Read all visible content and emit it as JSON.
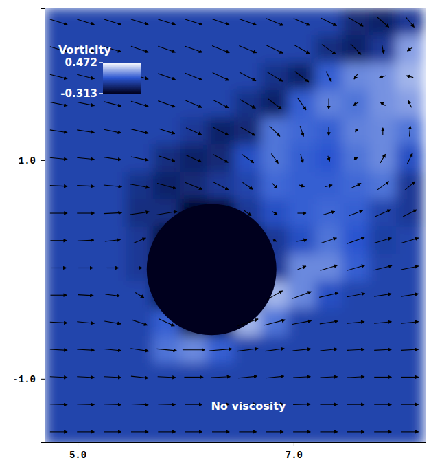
{
  "chart_data": {
    "type": "heatmap",
    "annotation": "No viscosity",
    "xlim": [
      4.695,
      8.22
    ],
    "ylim": [
      -1.58,
      2.39
    ],
    "xticks": [
      {
        "value": 5,
        "label": "5.0"
      },
      {
        "value": 7,
        "label": "7.0"
      }
    ],
    "yticks": [
      {
        "value": -1,
        "label": "-1.0"
      },
      {
        "value": 1,
        "label": "1.0"
      }
    ],
    "colorbar": {
      "title": "Vorticity",
      "range": [
        -0.313,
        0.472
      ],
      "ticks": [
        0.472,
        -0.313
      ],
      "colors": [
        "#00001e",
        "#2a55d0",
        "#ffffff"
      ]
    },
    "cylinder": {
      "x": 6.24,
      "y": 0.0,
      "radius": 0.6
    },
    "x": [
      4.825,
      5.075,
      5.325,
      5.575,
      5.825,
      6.075,
      6.325,
      6.575,
      6.825,
      7.075,
      7.325,
      7.575,
      7.825,
      8.075
    ],
    "y": [
      2.265,
      2.015,
      1.765,
      1.515,
      1.265,
      1.015,
      0.765,
      0.515,
      0.265,
      0.015,
      -0.235,
      -0.485,
      -0.735,
      -0.985,
      -1.235,
      -1.485
    ],
    "z": [
      [
        0,
        0,
        0,
        0,
        0,
        0,
        0,
        0,
        0,
        0,
        0,
        -0.12,
        -0.15,
        -0.05
      ],
      [
        0,
        0,
        0,
        0,
        0,
        0,
        0,
        0,
        0,
        0,
        -0.1,
        -0.15,
        -0.05,
        0.25
      ],
      [
        0,
        0,
        0,
        0,
        0,
        0,
        0,
        0,
        -0.08,
        -0.15,
        0.1,
        0.2,
        0.22,
        0.3
      ],
      [
        0,
        0,
        0,
        0,
        0,
        0,
        0,
        -0.08,
        -0.15,
        0.1,
        0.18,
        0.15,
        0.22,
        0.25
      ],
      [
        0,
        0,
        0,
        0,
        0,
        -0.05,
        -0.15,
        -0.12,
        0.15,
        0.12,
        0.1,
        0.18,
        0.2,
        0.15
      ],
      [
        0,
        0,
        0,
        0,
        -0.1,
        -0.15,
        -0.12,
        0.05,
        0.15,
        0.1,
        0.08,
        0.15,
        0.2,
        0.05
      ],
      [
        0,
        0,
        0,
        -0.08,
        -0.15,
        -0.12,
        -0.05,
        0,
        0.12,
        0.1,
        0.1,
        0.12,
        0.15,
        -0.05
      ],
      [
        0,
        0,
        0,
        -0.1,
        -0.1,
        -0.3,
        -0.3,
        -0.05,
        0.05,
        0.1,
        0.12,
        0.1,
        0,
        -0.05
      ],
      [
        0,
        0,
        0,
        -0.05,
        -0.3,
        -0.3,
        -0.3,
        -0.3,
        -0.05,
        0.05,
        0.15,
        0.08,
        -0.02,
        0
      ],
      [
        0,
        0,
        0,
        -0.05,
        -0.3,
        -0.3,
        -0.3,
        -0.3,
        -0.05,
        0.2,
        0.2,
        0.1,
        0,
        0
      ],
      [
        0,
        0,
        0,
        0,
        -0.3,
        -0.3,
        -0.3,
        -0.3,
        0.3,
        0.2,
        0.05,
        0,
        0,
        0
      ],
      [
        0,
        0,
        0,
        0,
        0.1,
        -0.3,
        -0.3,
        0.3,
        0.15,
        0,
        0,
        0,
        0,
        0
      ],
      [
        0,
        0,
        0,
        0,
        0.15,
        0.2,
        0.1,
        0,
        0,
        0,
        0,
        0,
        0,
        0
      ],
      [
        0,
        0,
        0,
        0,
        0,
        0,
        0,
        0,
        0,
        0,
        0,
        0,
        0,
        0
      ],
      [
        0,
        0,
        0,
        0,
        0,
        0,
        0,
        0,
        0,
        0,
        0,
        0,
        0,
        0
      ],
      [
        0,
        0,
        0,
        0,
        0,
        0,
        0,
        0,
        0,
        0,
        0,
        0,
        0,
        0
      ]
    ],
    "vectors": {
      "u": [
        [
          1.0,
          1.0,
          1.0,
          1.0,
          1.0,
          1.0,
          1.0,
          1.0,
          1.0,
          0.95,
          0.9,
          0.85,
          0.7,
          0.5
        ],
        [
          1.0,
          1.0,
          1.0,
          1.0,
          1.0,
          1.0,
          1.0,
          1.0,
          0.95,
          0.9,
          0.8,
          0.6,
          0.1,
          -0.3
        ],
        [
          1.0,
          1.0,
          1.0,
          1.0,
          1.0,
          1.0,
          0.95,
          0.95,
          0.9,
          0.8,
          0.3,
          -0.2,
          -0.4,
          -0.4
        ],
        [
          1.0,
          1.0,
          1.0,
          1.0,
          1.0,
          0.95,
          0.9,
          0.9,
          0.8,
          0.5,
          0.0,
          -0.3,
          -0.3,
          -0.2
        ],
        [
          1.0,
          1.0,
          1.0,
          1.0,
          0.95,
          0.9,
          0.9,
          0.85,
          0.6,
          0.2,
          0.0,
          -0.05,
          0.0,
          0.05
        ],
        [
          1.0,
          1.0,
          1.0,
          1.0,
          0.95,
          0.9,
          0.85,
          0.7,
          0.4,
          0.15,
          0.1,
          0.2,
          0.3,
          0.3
        ],
        [
          1.0,
          1.0,
          1.05,
          1.1,
          1.1,
          1.0,
          0.9,
          0.6,
          0.3,
          0.3,
          0.4,
          0.6,
          0.7,
          0.6
        ],
        [
          1.0,
          1.0,
          1.05,
          1.1,
          1.2,
          null,
          null,
          0.4,
          0.3,
          0.5,
          0.7,
          0.8,
          0.9,
          0.8
        ],
        [
          0.95,
          0.95,
          0.9,
          0.7,
          null,
          null,
          null,
          null,
          0.2,
          0.6,
          0.9,
          1.0,
          1.0,
          1.0
        ],
        [
          0.9,
          0.85,
          0.7,
          0.3,
          null,
          null,
          null,
          null,
          null,
          0.5,
          1.0,
          1.05,
          1.05,
          1.0
        ],
        [
          0.95,
          0.9,
          0.85,
          0.5,
          null,
          null,
          null,
          null,
          0.9,
          1.1,
          1.1,
          1.05,
          1.0,
          1.0
        ],
        [
          1.0,
          1.0,
          0.95,
          0.9,
          0.9,
          null,
          null,
          1.2,
          1.2,
          1.1,
          1.05,
          1.0,
          1.0,
          1.0
        ],
        [
          1.0,
          1.0,
          1.0,
          1.05,
          1.15,
          1.3,
          1.3,
          1.2,
          1.1,
          1.05,
          1.0,
          1.0,
          1.0,
          1.0
        ],
        [
          1.0,
          1.0,
          1.0,
          1.0,
          1.05,
          1.1,
          1.1,
          1.1,
          1.05,
          1.0,
          1.0,
          1.0,
          1.0,
          1.0
        ],
        [
          1.0,
          1.0,
          1.0,
          1.0,
          1.0,
          1.0,
          1.0,
          1.0,
          1.0,
          1.0,
          1.0,
          1.0,
          1.0,
          1.0
        ],
        [
          1.0,
          1.0,
          1.0,
          1.0,
          1.0,
          1.0,
          1.0,
          1.0,
          1.0,
          1.0,
          1.0,
          1.0,
          1.0,
          1.0
        ]
      ],
      "v": [
        [
          -0.3,
          -0.3,
          -0.3,
          -0.3,
          -0.3,
          -0.3,
          -0.35,
          -0.35,
          -0.4,
          -0.4,
          -0.45,
          -0.5,
          -0.6,
          -0.6
        ],
        [
          -0.3,
          -0.3,
          -0.3,
          -0.35,
          -0.35,
          -0.35,
          -0.4,
          -0.4,
          -0.45,
          -0.5,
          -0.55,
          -0.6,
          -0.5,
          -0.2
        ],
        [
          -0.25,
          -0.25,
          -0.3,
          -0.3,
          -0.35,
          -0.4,
          -0.45,
          -0.5,
          -0.55,
          -0.6,
          -0.6,
          -0.3,
          -0.1,
          0.1
        ],
        [
          -0.2,
          -0.2,
          -0.25,
          -0.3,
          -0.35,
          -0.4,
          -0.45,
          -0.5,
          -0.6,
          -0.7,
          -0.6,
          -0.2,
          0.2,
          0.4
        ],
        [
          -0.15,
          -0.15,
          -0.2,
          -0.25,
          -0.3,
          -0.4,
          -0.45,
          -0.5,
          -0.6,
          -0.6,
          -0.5,
          -0.1,
          0.4,
          0.6
        ],
        [
          -0.1,
          -0.1,
          -0.15,
          -0.2,
          -0.3,
          -0.4,
          -0.45,
          -0.5,
          -0.55,
          -0.5,
          -0.3,
          0.1,
          0.5,
          0.6
        ],
        [
          -0.05,
          -0.05,
          -0.1,
          -0.2,
          -0.3,
          -0.4,
          -0.45,
          -0.4,
          -0.3,
          -0.1,
          0.1,
          0.3,
          0.5,
          0.5
        ],
        [
          0.0,
          0.0,
          0.05,
          0.15,
          0.2,
          null,
          null,
          -0.3,
          -0.2,
          0.0,
          0.2,
          0.3,
          0.4,
          0.4
        ],
        [
          0.0,
          0.05,
          0.1,
          0.3,
          null,
          null,
          null,
          null,
          -0.1,
          0.1,
          0.3,
          0.35,
          0.3,
          0.3
        ],
        [
          0.0,
          0.0,
          0.0,
          0.0,
          null,
          null,
          null,
          null,
          null,
          0.2,
          0.3,
          0.3,
          0.25,
          0.2
        ],
        [
          0.0,
          -0.05,
          -0.1,
          -0.3,
          null,
          null,
          null,
          null,
          0.5,
          0.4,
          0.25,
          0.2,
          0.15,
          0.15
        ],
        [
          -0.05,
          -0.1,
          -0.15,
          -0.3,
          -0.4,
          null,
          null,
          0.4,
          0.3,
          0.2,
          0.15,
          0.1,
          0.1,
          0.1
        ],
        [
          -0.05,
          -0.05,
          -0.1,
          -0.15,
          -0.1,
          0.0,
          0.1,
          0.15,
          0.15,
          0.1,
          0.1,
          0.05,
          0.05,
          0.05
        ],
        [
          -0.05,
          -0.05,
          -0.05,
          -0.1,
          -0.05,
          0.0,
          0.05,
          0.1,
          0.1,
          0.05,
          0.05,
          0.05,
          0.0,
          0.0
        ],
        [
          -0.03,
          -0.03,
          -0.03,
          -0.05,
          -0.03,
          0.0,
          0.03,
          0.05,
          0.05,
          0.03,
          0.0,
          0.0,
          0.0,
          0.0
        ],
        [
          0.0,
          0.0,
          0.0,
          0.0,
          0.0,
          0.0,
          0.0,
          0.0,
          0.0,
          0.0,
          0.0,
          0.0,
          0.0,
          0.0
        ]
      ]
    }
  }
}
